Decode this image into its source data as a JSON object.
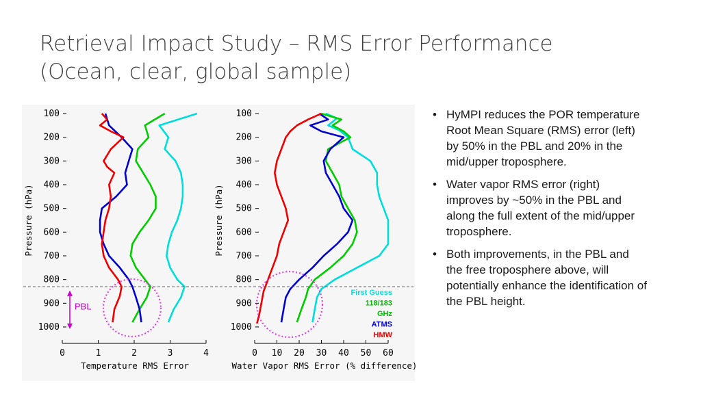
{
  "title": {
    "line1": "Retrieval Impact Study – RMS Error Performance",
    "line2": "(Ocean, clear, global sample)"
  },
  "bullets": [
    "HyMPI reduces the POR temperature Root Mean Square (RMS) error (left) by 50% in the PBL and 20% in the mid/upper troposphere.",
    "Water vapor RMS error (right) improves by ~50% in the PBL and along the full extent of the mid/upper troposphere.",
    "Both improvements, in the PBL and the free troposphere above, will potentially enhance the identification of the PBL height."
  ],
  "annotation": {
    "pbl_label": "PBL",
    "pbl_top_hpa": 855,
    "pbl_bottom_hpa": 1000,
    "pbl_line_hpa": 830
  },
  "legend": [
    {
      "text": "First Guess",
      "color": "#00e0e0"
    },
    {
      "text": "118/183",
      "color": "#00bb00"
    },
    {
      "text": "GHz",
      "color": "#00bb00"
    },
    {
      "text": "ATMS",
      "color": "#0000dd"
    },
    {
      "text": "HMW",
      "color": "#ee0000"
    }
  ],
  "chart_data": [
    {
      "type": "line",
      "xlabel": "Temperature RMS Error",
      "ylabel": "Pressure (hPa)",
      "xlim": [
        0,
        4
      ],
      "ylim": [
        1000,
        100
      ],
      "y_inverted": true,
      "xticks": [
        "0",
        "1",
        "2",
        "3",
        "4"
      ],
      "yticks": [
        "100",
        "200",
        "300",
        "400",
        "500",
        "600",
        "700",
        "800",
        "900",
        "1000"
      ],
      "series": [
        {
          "color": "#00dddd",
          "points": [
            [
              3.75,
              100
            ],
            [
              2.7,
              150
            ],
            [
              2.95,
              200
            ],
            [
              2.85,
              250
            ],
            [
              3.15,
              300
            ],
            [
              3.3,
              350
            ],
            [
              3.35,
              400
            ],
            [
              3.35,
              450
            ],
            [
              3.3,
              500
            ],
            [
              3.2,
              550
            ],
            [
              3.05,
              600
            ],
            [
              2.95,
              650
            ],
            [
              2.9,
              700
            ],
            [
              3.0,
              750
            ],
            [
              3.2,
              800
            ],
            [
              3.4,
              830
            ],
            [
              3.3,
              875
            ],
            [
              3.1,
              925
            ],
            [
              2.95,
              980
            ]
          ]
        },
        {
          "color": "#00cc00",
          "points": [
            [
              2.85,
              100
            ],
            [
              2.3,
              150
            ],
            [
              2.4,
              200
            ],
            [
              2.1,
              250
            ],
            [
              2.05,
              300
            ],
            [
              2.25,
              350
            ],
            [
              2.45,
              400
            ],
            [
              2.6,
              450
            ],
            [
              2.6,
              500
            ],
            [
              2.4,
              550
            ],
            [
              2.15,
              600
            ],
            [
              1.95,
              650
            ],
            [
              1.9,
              700
            ],
            [
              2.05,
              750
            ],
            [
              2.3,
              800
            ],
            [
              2.45,
              830
            ],
            [
              2.35,
              875
            ],
            [
              2.15,
              925
            ],
            [
              1.95,
              980
            ]
          ]
        },
        {
          "color": "#0000cc",
          "points": [
            [
              1.2,
              100
            ],
            [
              1.3,
              150
            ],
            [
              1.65,
              200
            ],
            [
              1.95,
              250
            ],
            [
              1.85,
              300
            ],
            [
              1.75,
              350
            ],
            [
              1.8,
              400
            ],
            [
              1.5,
              450
            ],
            [
              1.1,
              500
            ],
            [
              1.05,
              550
            ],
            [
              1.05,
              600
            ],
            [
              1.15,
              650
            ],
            [
              1.3,
              700
            ],
            [
              1.6,
              750
            ],
            [
              1.85,
              800
            ],
            [
              1.95,
              830
            ],
            [
              2.05,
              875
            ],
            [
              2.15,
              925
            ],
            [
              2.2,
              980
            ]
          ]
        },
        {
          "color": "#ee0000",
          "points": [
            [
              1.1,
              100
            ],
            [
              1.25,
              125
            ],
            [
              1.05,
              150
            ],
            [
              1.35,
              175
            ],
            [
              1.7,
              200
            ],
            [
              1.35,
              250
            ],
            [
              1.15,
              300
            ],
            [
              1.25,
              325
            ],
            [
              1.45,
              350
            ],
            [
              1.3,
              400
            ],
            [
              1.35,
              450
            ],
            [
              1.3,
              500
            ],
            [
              1.2,
              550
            ],
            [
              1.15,
              600
            ],
            [
              1.1,
              650
            ],
            [
              1.15,
              700
            ],
            [
              1.3,
              750
            ],
            [
              1.55,
              800
            ],
            [
              1.65,
              830
            ],
            [
              1.6,
              870
            ],
            [
              1.45,
              925
            ],
            [
              1.4,
              980
            ]
          ]
        }
      ]
    },
    {
      "type": "line",
      "xlabel": "Water Vapor RMS Error (% difference)",
      "ylabel": "Pressure (hPa)",
      "xlim": [
        0,
        60
      ],
      "ylim": [
        1000,
        100
      ],
      "y_inverted": true,
      "xticks": [
        "0",
        "10",
        "20",
        "30",
        "40",
        "50",
        "60"
      ],
      "yticks": [
        "100",
        "200",
        "300",
        "400",
        "500",
        "600",
        "700",
        "800",
        "900",
        "1000"
      ],
      "series": [
        {
          "color": "#00dddd",
          "points": [
            [
              32,
              100
            ],
            [
              37,
              120
            ],
            [
              33,
              150
            ],
            [
              38,
              170
            ],
            [
              42,
              200
            ],
            [
              44,
              250
            ],
            [
              52,
              300
            ],
            [
              55,
              350
            ],
            [
              55,
              400
            ],
            [
              56,
              450
            ],
            [
              58,
              500
            ],
            [
              60,
              550
            ],
            [
              60,
              600
            ],
            [
              60,
              650
            ],
            [
              56,
              700
            ],
            [
              46,
              750
            ],
            [
              36,
              800
            ],
            [
              30,
              840
            ],
            [
              28,
              875
            ],
            [
              27,
              925
            ],
            [
              26,
              980
            ]
          ]
        },
        {
          "color": "#00cc00",
          "points": [
            [
              30,
              100
            ],
            [
              39,
              125
            ],
            [
              35,
              150
            ],
            [
              40,
              175
            ],
            [
              43,
              200
            ],
            [
              33,
              250
            ],
            [
              32,
              300
            ],
            [
              35,
              350
            ],
            [
              38,
              400
            ],
            [
              39,
              450
            ],
            [
              42,
              500
            ],
            [
              45,
              550
            ],
            [
              46,
              600
            ],
            [
              44,
              650
            ],
            [
              40,
              700
            ],
            [
              34,
              750
            ],
            [
              27,
              800
            ],
            [
              24,
              840
            ],
            [
              23,
              875
            ],
            [
              21,
              925
            ],
            [
              19,
              980
            ]
          ]
        },
        {
          "color": "#0000cc",
          "points": [
            [
              29,
              100
            ],
            [
              33,
              125
            ],
            [
              25,
              150
            ],
            [
              30,
              175
            ],
            [
              40,
              200
            ],
            [
              34,
              250
            ],
            [
              31,
              300
            ],
            [
              32,
              350
            ],
            [
              35,
              400
            ],
            [
              38,
              450
            ],
            [
              40,
              500
            ],
            [
              44,
              550
            ],
            [
              42,
              600
            ],
            [
              37,
              650
            ],
            [
              31,
              700
            ],
            [
              26,
              750
            ],
            [
              20,
              800
            ],
            [
              16,
              840
            ],
            [
              14,
              875
            ],
            [
              13,
              925
            ],
            [
              12,
              980
            ]
          ]
        },
        {
          "color": "#ee0000",
          "points": [
            [
              30,
              100
            ],
            [
              24,
              125
            ],
            [
              19,
              150
            ],
            [
              16,
              175
            ],
            [
              14,
              200
            ],
            [
              12,
              250
            ],
            [
              10,
              300
            ],
            [
              9,
              350
            ],
            [
              10,
              400
            ],
            [
              12,
              450
            ],
            [
              14,
              500
            ],
            [
              15,
              550
            ],
            [
              13,
              600
            ],
            [
              11,
              650
            ],
            [
              10,
              700
            ],
            [
              8,
              750
            ],
            [
              6,
              800
            ],
            [
              4,
              850
            ],
            [
              3,
              900
            ],
            [
              2,
              950
            ],
            [
              1,
              985
            ]
          ]
        }
      ]
    }
  ]
}
